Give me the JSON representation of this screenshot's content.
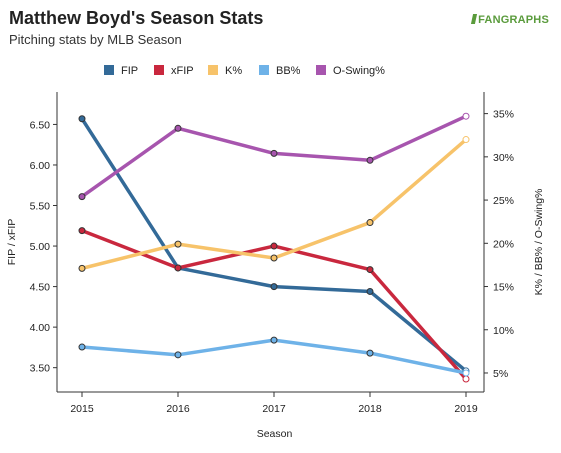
{
  "header": {
    "title": "Matthew Boyd's Season Stats",
    "subtitle": "Pitching stats by MLB Season",
    "logo_text": "FANGRAPHS"
  },
  "chart_data": {
    "type": "line",
    "title": "Matthew Boyd's Season Stats",
    "subtitle": "Pitching stats by MLB Season",
    "xlabel": "Season",
    "ylabel_left": "FIP / xFIP",
    "ylabel_right": "K% / BB% / O-Swing%",
    "x": [
      "2015",
      "2016",
      "2017",
      "2018",
      "2019"
    ],
    "ylim_left": [
      3.2,
      6.9
    ],
    "ylim_right": [
      2.8,
      37.5
    ],
    "left_ticks": [
      "3.50",
      "4.00",
      "4.50",
      "5.00",
      "5.50",
      "6.00",
      "6.50"
    ],
    "left_tick_values": [
      3.5,
      4.0,
      4.5,
      5.0,
      5.5,
      6.0,
      6.5
    ],
    "right_ticks": [
      "5%",
      "10%",
      "15%",
      "20%",
      "25%",
      "30%",
      "35%"
    ],
    "right_tick_values": [
      5,
      10,
      15,
      20,
      25,
      30,
      35
    ],
    "grid": false,
    "legend_position": "top",
    "series": [
      {
        "name": "FIP",
        "axis": "left",
        "color": "#336a98",
        "values": [
          6.57,
          4.73,
          4.5,
          4.44,
          3.46
        ]
      },
      {
        "name": "xFIP",
        "axis": "left",
        "color": "#c9283e",
        "values": [
          5.19,
          4.73,
          5.0,
          4.71,
          3.36
        ]
      },
      {
        "name": "K%",
        "axis": "right",
        "color": "#f7c36a",
        "values": [
          17.1,
          19.9,
          18.3,
          22.4,
          32.0
        ]
      },
      {
        "name": "BB%",
        "axis": "right",
        "color": "#6eb2e8",
        "values": [
          8.0,
          7.1,
          8.8,
          7.3,
          5.0
        ]
      },
      {
        "name": "O-Swing%",
        "axis": "right",
        "color": "#a755ae",
        "values": [
          25.4,
          33.3,
          30.4,
          29.6,
          34.7
        ]
      }
    ]
  }
}
